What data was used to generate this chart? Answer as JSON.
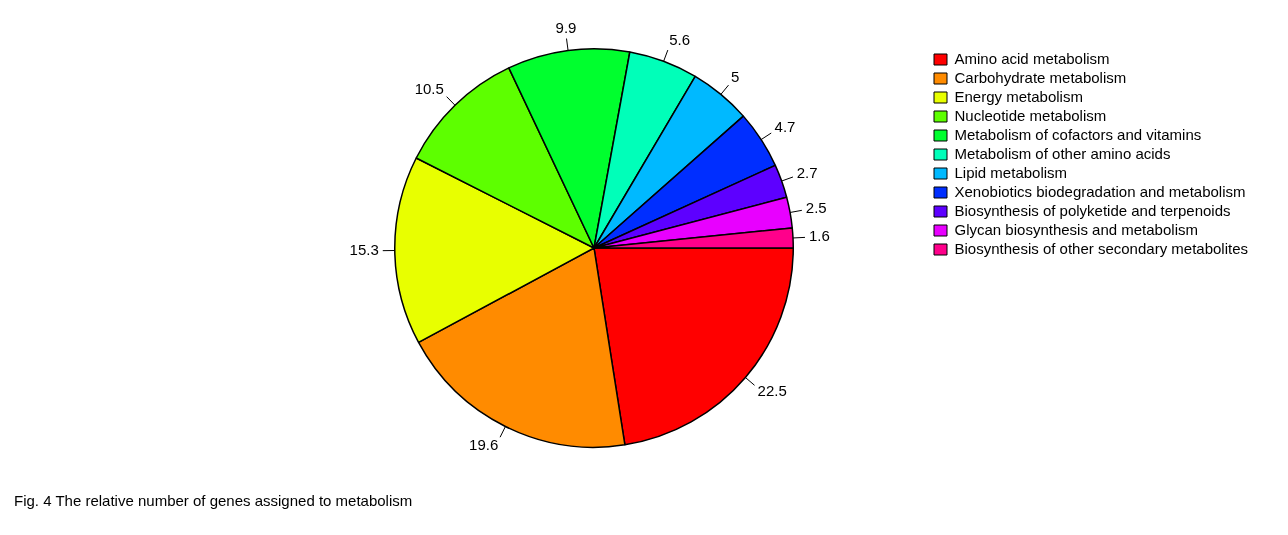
{
  "chart_data": {
    "type": "pie",
    "categories": [
      "Amino acid metabolism",
      "Carbohydrate metabolism",
      "Energy metabolism",
      "Nucleotide metabolism",
      "Metabolism of cofactors and vitamins",
      "Metabolism of other amino acids",
      "Lipid metabolism",
      "Xenobiotics biodegradation and metabolism",
      "Biosynthesis of polyketide and terpenoids",
      "Glycan biosynthesis and metabolism",
      "Biosynthesis of other secondary metabolites"
    ],
    "values": [
      22.5,
      19.6,
      15.3,
      10.5,
      9.9,
      5.6,
      5,
      4.7,
      2.7,
      2.5,
      1.6
    ],
    "colors": [
      "#ff0000",
      "#ff8b00",
      "#e8ff00",
      "#5dff00",
      "#00ff2e",
      "#00ffb9",
      "#00b9ff",
      "#002eff",
      "#5d00ff",
      "#e800ff",
      "#ff008b"
    ],
    "data_labels": true,
    "legend": "top right",
    "annotations": [
      "Fig. 4 The relative number of genes assigned to metabolism"
    ]
  }
}
